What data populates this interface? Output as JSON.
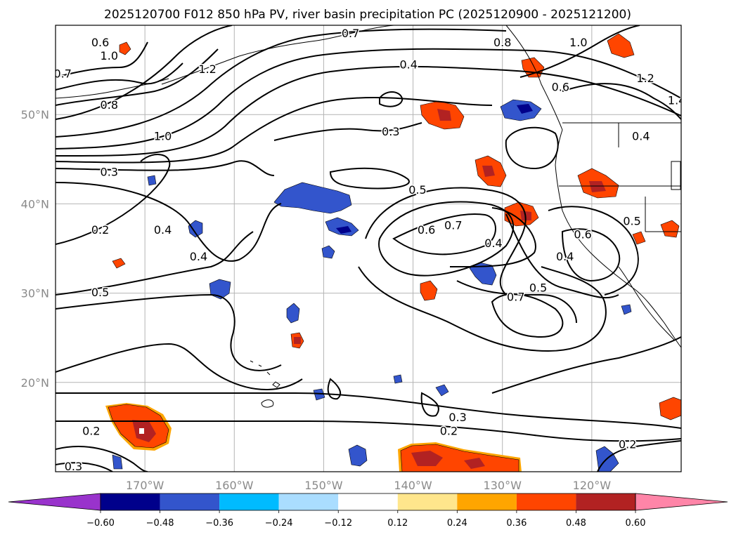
{
  "figure": {
    "title": "2025120700 F012 850 hPa PV, river basin precipitation PC (2025120900 - 2025121200)"
  },
  "map": {
    "lon_range": [
      -180,
      -110
    ],
    "lat_range": [
      10,
      60
    ],
    "lon_ticks": [
      {
        "lon": -170,
        "label": "170°W"
      },
      {
        "lon": -160,
        "label": "160°W"
      },
      {
        "lon": -150,
        "label": "150°W"
      },
      {
        "lon": -140,
        "label": "140°W"
      },
      {
        "lon": -130,
        "label": "130°W"
      },
      {
        "lon": -120,
        "label": "120°W"
      }
    ],
    "lat_ticks": [
      {
        "lat": 20,
        "label": "20°N"
      },
      {
        "lat": 30,
        "label": "30°N"
      },
      {
        "lat": 40,
        "label": "40°N"
      },
      {
        "lat": 50,
        "label": "50°N"
      }
    ],
    "contour_labels": [
      {
        "lon": -175.0,
        "lat": 58.0,
        "text": "0.6"
      },
      {
        "lon": -179.2,
        "lat": 54.5,
        "text": "0.7"
      },
      {
        "lon": -174.0,
        "lat": 56.5,
        "text": "1.0"
      },
      {
        "lon": -163.0,
        "lat": 55.0,
        "text": "1.2"
      },
      {
        "lon": -174.0,
        "lat": 51.0,
        "text": "0.8"
      },
      {
        "lon": -168.0,
        "lat": 47.5,
        "text": "1.0"
      },
      {
        "lon": -174.0,
        "lat": 43.5,
        "text": "0.3"
      },
      {
        "lon": -175.0,
        "lat": 37.0,
        "text": "0.2"
      },
      {
        "lon": -168.0,
        "lat": 37.0,
        "text": "0.4"
      },
      {
        "lon": -164.0,
        "lat": 34.0,
        "text": "0.4"
      },
      {
        "lon": -175.0,
        "lat": 30.0,
        "text": "0.5"
      },
      {
        "lon": -176.0,
        "lat": 14.5,
        "text": "0.2"
      },
      {
        "lon": -178.0,
        "lat": 10.5,
        "text": "0.3"
      },
      {
        "lon": -147.0,
        "lat": 59.0,
        "text": "0.7"
      },
      {
        "lon": -140.5,
        "lat": 55.5,
        "text": "0.4"
      },
      {
        "lon": -130.0,
        "lat": 58.0,
        "text": "0.8"
      },
      {
        "lon": -142.5,
        "lat": 48.0,
        "text": "0.3"
      },
      {
        "lon": -139.5,
        "lat": 41.5,
        "text": "0.5"
      },
      {
        "lon": -138.5,
        "lat": 37.0,
        "text": "0.6"
      },
      {
        "lon": -135.5,
        "lat": 37.5,
        "text": "0.7"
      },
      {
        "lon": -131.0,
        "lat": 35.5,
        "text": "0.4"
      },
      {
        "lon": -126.0,
        "lat": 30.5,
        "text": "0.5"
      },
      {
        "lon": -128.5,
        "lat": 29.5,
        "text": "0.7"
      },
      {
        "lon": -123.0,
        "lat": 34.0,
        "text": "0.4"
      },
      {
        "lon": -121.0,
        "lat": 36.5,
        "text": "0.6"
      },
      {
        "lon": -115.5,
        "lat": 38.0,
        "text": "0.5"
      },
      {
        "lon": -121.5,
        "lat": 58.0,
        "text": "1.0"
      },
      {
        "lon": -123.5,
        "lat": 53.0,
        "text": "0.6"
      },
      {
        "lon": -114.0,
        "lat": 54.0,
        "text": "1.2"
      },
      {
        "lon": -110.5,
        "lat": 51.5,
        "text": "1.4"
      },
      {
        "lon": -114.5,
        "lat": 47.5,
        "text": "0.4"
      },
      {
        "lon": -135.0,
        "lat": 16.0,
        "text": "0.3"
      },
      {
        "lon": -136.0,
        "lat": 14.5,
        "text": "0.2"
      },
      {
        "lon": -116.0,
        "lat": 13.0,
        "text": "0.2"
      }
    ]
  },
  "colorbar": {
    "colors": [
      "#9933cc",
      "#00008b",
      "#3355cc",
      "#00bbff",
      "#aaddff",
      "#ffffff",
      "#ffe68c",
      "#ffa500",
      "#ff4500",
      "#b22222",
      "#ff85a8"
    ],
    "tick_labels": [
      "−0.60",
      "−0.48",
      "−0.36",
      "−0.24",
      "−0.12",
      "0.12",
      "0.24",
      "0.36",
      "0.48",
      "0.60"
    ]
  }
}
